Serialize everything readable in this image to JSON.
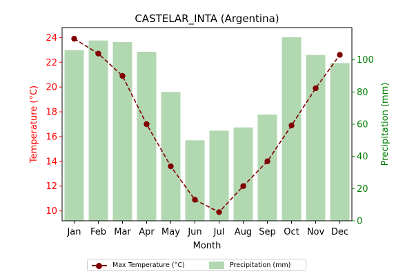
{
  "chart_data": {
    "type": "bar+line",
    "title": "CASTELAR_INTA (Argentina)",
    "xlabel": "Month",
    "ylabel_left": "Temperature (°C)",
    "ylabel_right": "Precipitation (mm)",
    "categories": [
      "Jan",
      "Feb",
      "Mar",
      "Apr",
      "May",
      "Jun",
      "Jul",
      "Aug",
      "Sep",
      "Oct",
      "Nov",
      "Dec"
    ],
    "series": [
      {
        "name": "Max Temperature (°C)",
        "kind": "line",
        "axis": "left",
        "color": "#800000",
        "values": [
          23.9,
          22.7,
          20.9,
          17.0,
          13.6,
          10.9,
          9.9,
          12.0,
          14.0,
          16.9,
          19.9,
          22.6
        ]
      },
      {
        "name": "Precipitation (mm)",
        "kind": "bar",
        "axis": "right",
        "color": "#b2d8b2",
        "values": [
          106,
          112,
          111,
          105,
          80,
          50,
          56,
          58,
          66,
          114,
          103,
          98
        ]
      }
    ],
    "ylim_left": [
      9.2,
      24.8
    ],
    "ylim_right": [
      0,
      120
    ],
    "yticks_left": [
      10,
      12,
      14,
      16,
      18,
      20,
      22,
      24
    ],
    "yticks_right": [
      0,
      20,
      40,
      60,
      80,
      100
    ],
    "left_axis_color": "#ff0000",
    "right_axis_color": "#008000",
    "legend_position": "bottom-center",
    "grid": false
  }
}
